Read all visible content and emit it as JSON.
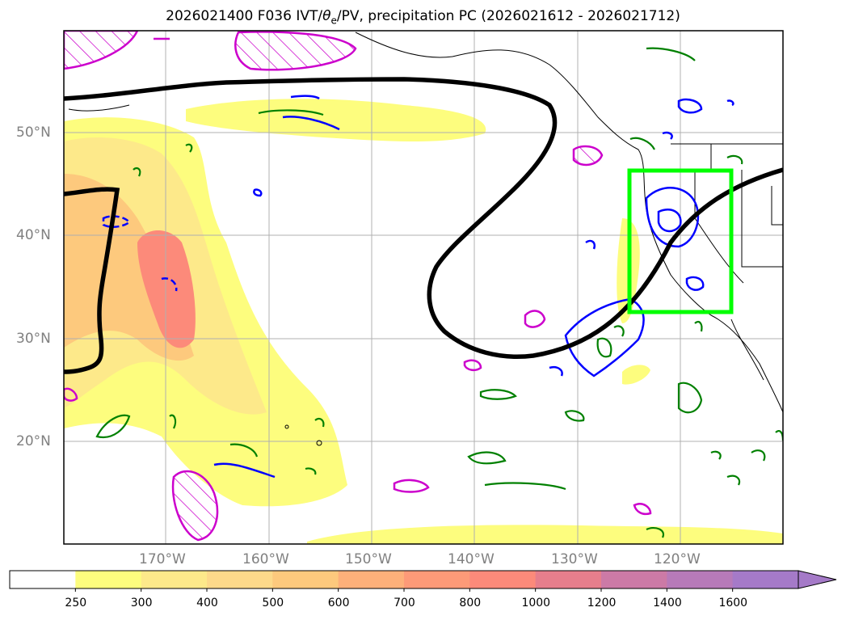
{
  "title": "2026021400 F036 IVT/θe/PV, precipitation PC (2026021612 - 2026021712)",
  "title_parts": {
    "prefix": "2026021400 F036 IVT/",
    "theta": "θ",
    "sub": "e",
    "suffix": "/PV, precipitation PC (2026021612 - 2026021712)"
  },
  "lat_labels": [
    "50°N",
    "40°N",
    "30°N",
    "20°N"
  ],
  "lon_labels": [
    "170°W",
    "160°W",
    "150°W",
    "140°W",
    "130°W",
    "120°W"
  ],
  "colorbar": {
    "ticks": [
      "250",
      "300",
      "400",
      "500",
      "600",
      "700",
      "800",
      "1000",
      "1200",
      "1400",
      "1600"
    ],
    "colors": [
      "#ffffff",
      "#fdfd7e",
      "#fde98a",
      "#fdd98a",
      "#fdc97d",
      "#fdb07a",
      "#fd9a78",
      "#fc8a7a",
      "#e67e8c",
      "#cc7aa6",
      "#b77ab9",
      "#a57ac8"
    ]
  },
  "colors": {
    "ivt_light": "#fdfd7e",
    "ivt_mid": "#fdd98a",
    "ivt_high": "#fc8a7a",
    "theta_contour": "#000000",
    "pv_positive": "#0000ff",
    "precip_contour": "#008000",
    "pv_magenta": "#cc00cc",
    "target_box": "#00ff00"
  }
}
